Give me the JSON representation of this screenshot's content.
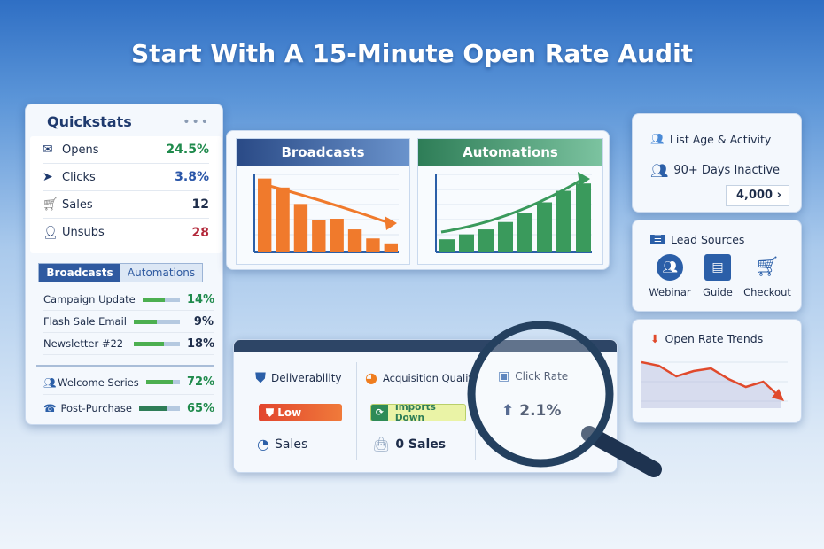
{
  "title": "Start With A 15-Minute Open Rate Audit",
  "quickstats": {
    "title": "Quickstats",
    "menu": "•••",
    "stats": [
      {
        "label": "Opens",
        "value": "24.5%",
        "icon": "envelope-icon",
        "color": "#1f8a4c"
      },
      {
        "label": "Clicks",
        "value": "3.8%",
        "icon": "cursor-icon",
        "color": "#2a56a8"
      },
      {
        "label": "Sales",
        "value": "12",
        "icon": "cart-icon",
        "color": "#1e2d4a"
      },
      {
        "label": "Unsubs",
        "value": "28",
        "icon": "user-remove-icon",
        "color": "#b3283a"
      }
    ],
    "tabs": [
      "Broadcasts",
      "Automations"
    ],
    "campaigns": [
      {
        "label": "Campaign Update",
        "value": "14%",
        "fill": 0.6
      },
      {
        "label": "Flash Sale Email",
        "value": "9%",
        "fill": 0.5
      },
      {
        "label": "Newsletter #22",
        "value": "18%",
        "fill": 0.65
      }
    ],
    "automations": [
      {
        "label": "Welcome Series",
        "value": "72%",
        "fill": 0.8,
        "icon": "user-group-icon"
      },
      {
        "label": "Post-Purchase",
        "value": "65%",
        "fill": 0.7,
        "icon": "support-icon"
      }
    ]
  },
  "chart_data": [
    {
      "type": "bar",
      "title": "Broadcasts",
      "values": [
        180,
        158,
        118,
        78,
        82,
        56,
        34,
        22
      ],
      "trend": "down",
      "color": "#f07a2c"
    },
    {
      "type": "bar",
      "title": "Automations",
      "values": [
        32,
        44,
        56,
        74,
        96,
        122,
        150,
        168
      ],
      "trend": "up",
      "color": "#3a9a5c"
    },
    {
      "type": "line",
      "title": "Open Rate Trends",
      "values": [
        52,
        48,
        36,
        42,
        45,
        33,
        24,
        30,
        12
      ],
      "trend": "down",
      "color": "#e04a2c"
    }
  ],
  "audit": {
    "deliverability": {
      "label": "Deliverability",
      "status": "Low",
      "footer": "Sales"
    },
    "acquisition": {
      "label": "Acquisition Quality",
      "status": "Imports Down",
      "footer": "0 Sales"
    },
    "click_rate": {
      "label": "Click Rate",
      "value": "2.1%"
    }
  },
  "list_age": {
    "title": "List Age & Activity",
    "label": "90+ Days Inactive",
    "count": "4,000",
    "chevron": "›"
  },
  "lead_sources": {
    "title": "Lead Sources",
    "items": [
      {
        "label": "Webinar",
        "icon": "people-icon"
      },
      {
        "label": "Guide",
        "icon": "document-icon"
      },
      {
        "label": "Checkout",
        "icon": "cart-icon"
      }
    ]
  }
}
